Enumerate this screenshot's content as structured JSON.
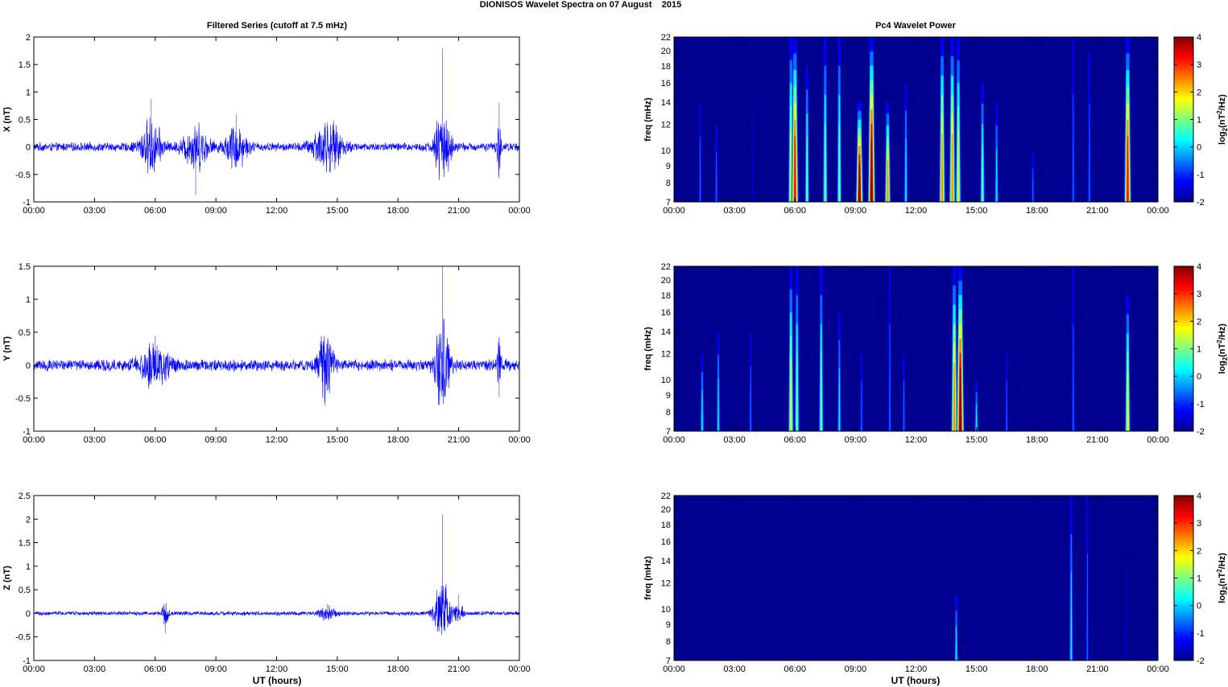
{
  "figure": {
    "title": "DIONISOS Wavelet Spectra on 07 August    2015",
    "left_title": "Filtered Series (cutoff at 7.5 mHz)",
    "right_title": "Pc4 Wavelet Power",
    "xlabel": "UT (hours)"
  },
  "colors": {
    "signal": "#0000ff",
    "spectrum_background": "#00008f",
    "colormap": [
      "#00008f",
      "#0000ff",
      "#007fff",
      "#00ffff",
      "#7fff7f",
      "#ffff00",
      "#ff7f00",
      "#ff0000",
      "#7f0000"
    ]
  },
  "time_ticks": [
    "00:00",
    "03:00",
    "06:00",
    "09:00",
    "12:00",
    "15:00",
    "18:00",
    "21:00",
    "00:00"
  ],
  "chart_data": [
    {
      "type": "line",
      "ylabel": "X (nT)",
      "xlim": [
        0,
        24
      ],
      "ylim": [
        -1,
        2
      ],
      "y_ticks": [
        -1,
        -0.5,
        0,
        0.5,
        1,
        1.5,
        2
      ],
      "noise_amplitude": 0.09,
      "bursts": [
        {
          "center": 5.8,
          "width": 0.5,
          "amplitude": 0.55,
          "peak": 0.87
        },
        {
          "center": 8.0,
          "width": 0.6,
          "amplitude": 0.45,
          "peak": -0.88
        },
        {
          "center": 10.0,
          "width": 0.5,
          "amplitude": 0.45,
          "peak": 0.6
        },
        {
          "center": 14.5,
          "width": 0.7,
          "amplitude": 0.5,
          "peak": 0.45
        },
        {
          "center": 20.2,
          "width": 0.35,
          "amplitude": 0.85,
          "peak": 1.8
        },
        {
          "center": 23.0,
          "width": 0.1,
          "amplitude": 0.55,
          "peak": 0.8
        }
      ]
    },
    {
      "type": "line",
      "ylabel": "Y (nT)",
      "xlim": [
        0,
        24
      ],
      "ylim": [
        -1,
        1.5
      ],
      "y_ticks": [
        -1,
        -0.5,
        0,
        0.5,
        1,
        1.5
      ],
      "noise_amplitude": 0.1,
      "bursts": [
        {
          "center": 6.0,
          "width": 0.7,
          "amplitude": 0.35,
          "peak": 0.45
        },
        {
          "center": 14.4,
          "width": 0.35,
          "amplitude": 0.55,
          "peak": -0.62
        },
        {
          "center": 20.2,
          "width": 0.35,
          "amplitude": 0.75,
          "peak": 1.5
        },
        {
          "center": 23.0,
          "width": 0.1,
          "amplitude": 0.45,
          "peak": -0.48
        }
      ]
    },
    {
      "type": "line",
      "ylabel": "Z (nT)",
      "xlim": [
        0,
        24
      ],
      "ylim": [
        -1,
        2.5
      ],
      "y_ticks": [
        -1,
        -0.5,
        0,
        0.5,
        1,
        1.5,
        2,
        2.5
      ],
      "noise_amplitude": 0.05,
      "bursts": [
        {
          "center": 6.5,
          "width": 0.15,
          "amplitude": 0.3,
          "peak": -0.42
        },
        {
          "center": 14.5,
          "width": 0.4,
          "amplitude": 0.15,
          "peak": 0.2
        },
        {
          "center": 20.2,
          "width": 0.35,
          "amplitude": 0.9,
          "peak": 2.1
        },
        {
          "center": 21.0,
          "width": 0.2,
          "amplitude": 0.3,
          "peak": 0.4
        }
      ]
    },
    {
      "type": "heatmap",
      "ylabel": "freq (mHz)",
      "xlim": [
        0,
        24
      ],
      "y_ticks": [
        7,
        8,
        9,
        10,
        12,
        14,
        16,
        18,
        20,
        22
      ],
      "colorbar": {
        "label": "log2(nT2/Hz)",
        "ticks": [
          4,
          3,
          2,
          1,
          0,
          -1,
          -2
        ],
        "range": [
          -2,
          4
        ]
      },
      "streaks": [
        {
          "time": 1.3,
          "top_freq": 14,
          "intensity": 0.2
        },
        {
          "time": 2.1,
          "top_freq": 12,
          "intensity": 0.3
        },
        {
          "time": 3.9,
          "top_freq": 14,
          "intensity": 0.15
        },
        {
          "time": 5.8,
          "top_freq": 22,
          "intensity": 0.65
        },
        {
          "time": 6.0,
          "top_freq": 22,
          "intensity": 0.9
        },
        {
          "time": 6.6,
          "top_freq": 18,
          "intensity": 0.45
        },
        {
          "time": 7.5,
          "top_freq": 22,
          "intensity": 0.55
        },
        {
          "time": 8.2,
          "top_freq": 22,
          "intensity": 0.5
        },
        {
          "time": 9.2,
          "top_freq": 14,
          "intensity": 0.95
        },
        {
          "time": 9.8,
          "top_freq": 22,
          "intensity": 0.95
        },
        {
          "time": 10.6,
          "top_freq": 14,
          "intensity": 0.7
        },
        {
          "time": 11.5,
          "top_freq": 16,
          "intensity": 0.4
        },
        {
          "time": 13.3,
          "top_freq": 22,
          "intensity": 0.7
        },
        {
          "time": 13.8,
          "top_freq": 22,
          "intensity": 0.75
        },
        {
          "time": 14.1,
          "top_freq": 22,
          "intensity": 0.65
        },
        {
          "time": 15.3,
          "top_freq": 16,
          "intensity": 0.5
        },
        {
          "time": 16.0,
          "top_freq": 14,
          "intensity": 0.4
        },
        {
          "time": 17.8,
          "top_freq": 10,
          "intensity": 0.25
        },
        {
          "time": 19.8,
          "top_freq": 22,
          "intensity": 0.3
        },
        {
          "time": 20.6,
          "top_freq": 20,
          "intensity": 0.3
        },
        {
          "time": 22.5,
          "top_freq": 22,
          "intensity": 0.9
        }
      ]
    },
    {
      "type": "heatmap",
      "ylabel": "freq (mHz)",
      "xlim": [
        0,
        24
      ],
      "y_ticks": [
        7,
        8,
        9,
        10,
        12,
        14,
        16,
        18,
        20,
        22
      ],
      "colorbar": {
        "label": "log2(nT2/Hz)",
        "ticks": [
          4,
          3,
          2,
          1,
          0,
          -1,
          -2
        ],
        "range": [
          -2,
          4
        ]
      },
      "streaks": [
        {
          "time": 1.4,
          "top_freq": 12,
          "intensity": 0.4
        },
        {
          "time": 2.2,
          "top_freq": 14,
          "intensity": 0.35
        },
        {
          "time": 3.8,
          "top_freq": 14,
          "intensity": 0.3
        },
        {
          "time": 5.8,
          "top_freq": 22,
          "intensity": 0.6
        },
        {
          "time": 6.1,
          "top_freq": 22,
          "intensity": 0.55
        },
        {
          "time": 7.3,
          "top_freq": 22,
          "intensity": 0.5
        },
        {
          "time": 8.2,
          "top_freq": 16,
          "intensity": 0.35
        },
        {
          "time": 9.3,
          "top_freq": 12,
          "intensity": 0.3
        },
        {
          "time": 10.7,
          "top_freq": 22,
          "intensity": 0.3
        },
        {
          "time": 11.4,
          "top_freq": 12,
          "intensity": 0.3
        },
        {
          "time": 13.9,
          "top_freq": 22,
          "intensity": 0.75
        },
        {
          "time": 14.2,
          "top_freq": 22,
          "intensity": 1.0
        },
        {
          "time": 15.0,
          "top_freq": 10,
          "intensity": 0.35
        },
        {
          "time": 16.5,
          "top_freq": 12,
          "intensity": 0.2
        },
        {
          "time": 19.8,
          "top_freq": 22,
          "intensity": 0.25
        },
        {
          "time": 22.5,
          "top_freq": 18,
          "intensity": 0.6
        }
      ]
    },
    {
      "type": "heatmap",
      "ylabel": "freq (mHz)",
      "xlim": [
        0,
        24
      ],
      "y_ticks": [
        7,
        8,
        9,
        10,
        12,
        14,
        16,
        18,
        20,
        22
      ],
      "colorbar": {
        "label": "log2(nT2/Hz)",
        "ticks": [
          4,
          3,
          2,
          1,
          0,
          -1,
          -2
        ],
        "range": [
          -2,
          4
        ]
      },
      "streaks": [
        {
          "time": 14.0,
          "top_freq": 11,
          "intensity": 0.35
        },
        {
          "time": 19.7,
          "top_freq": 22,
          "intensity": 0.35
        },
        {
          "time": 20.5,
          "top_freq": 22,
          "intensity": 0.25
        },
        {
          "time": 22.4,
          "top_freq": 14,
          "intensity": 0.15
        }
      ]
    }
  ]
}
